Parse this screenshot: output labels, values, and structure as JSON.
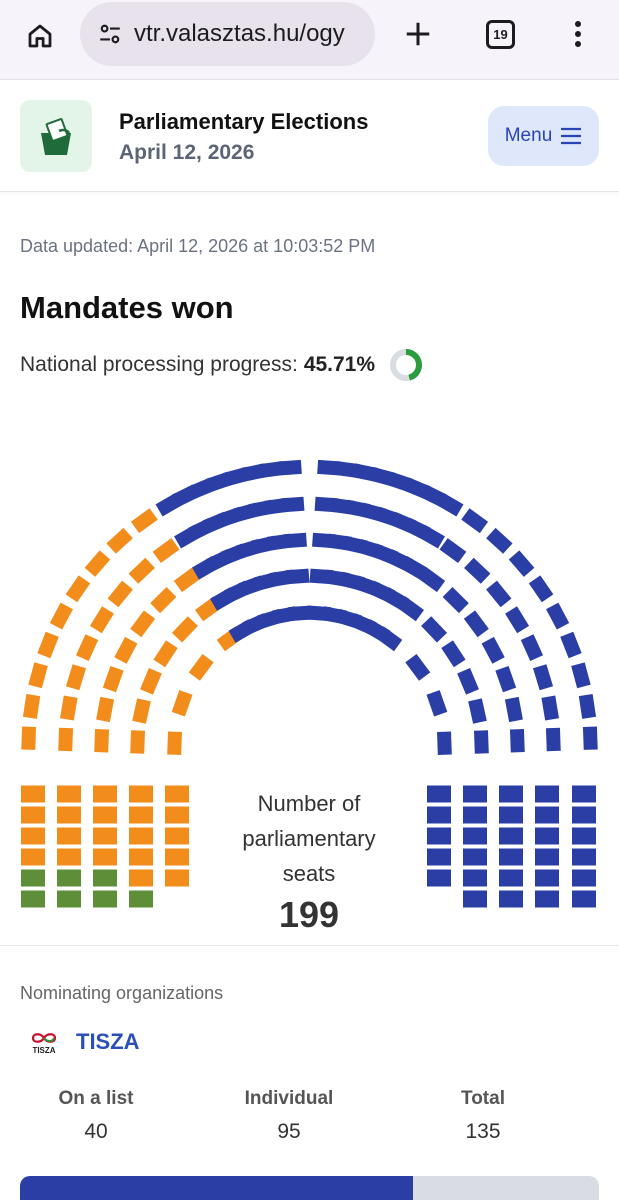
{
  "browser": {
    "url": "vtr.valasztas.hu/ogy",
    "tab_count": "19"
  },
  "header": {
    "title": "Parliamentary Elections",
    "date": "April 12, 2026",
    "menu_label": "Menu"
  },
  "main": {
    "updated": "Data updated: April 12, 2026 at 10:03:52 PM",
    "title": "Mandates won",
    "progress_label": "National processing progress:",
    "progress_value": "45.71%",
    "progress_fraction": 0.4571,
    "seats_label": "Number of parliamentary seats",
    "seats_total": "199"
  },
  "colors": {
    "tisza": "#2b3ea6",
    "orange": "#f28c1b",
    "green": "#5e8f38",
    "progress_green": "#2a9d3c",
    "progress_track": "#d9dde3"
  },
  "seat_groups": [
    {
      "name": "orange",
      "seats": 49
    },
    {
      "name": "green",
      "seats": 4
    },
    {
      "name": "tisza",
      "seats": 135
    }
  ],
  "nominating": {
    "label": "Nominating organizations",
    "party": "TISZA",
    "logo_text": "TISZA",
    "stats": [
      {
        "label": "On a list",
        "value": "40"
      },
      {
        "label": "Individual",
        "value": "95"
      },
      {
        "label": "Total",
        "value": "135"
      }
    ],
    "bar_fraction": 0.678
  }
}
